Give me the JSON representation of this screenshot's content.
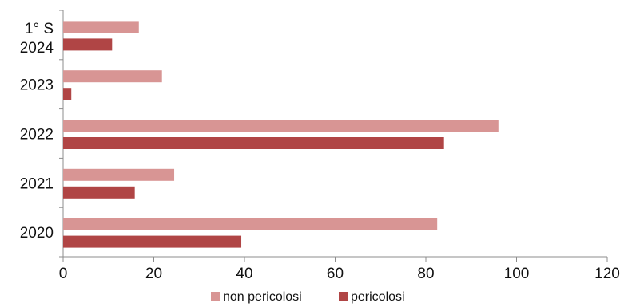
{
  "chart_data": {
    "type": "bar",
    "orientation": "horizontal",
    "title": "",
    "xlabel": "",
    "ylabel": "",
    "categories": [
      "2020",
      "2021",
      "2022",
      "2023",
      "2024"
    ],
    "category_labels": [
      [
        "2020"
      ],
      [
        "2021"
      ],
      [
        "2022"
      ],
      [
        "2023"
      ],
      [
        "1° S",
        "2024"
      ]
    ],
    "series": [
      {
        "name": "non pericolosi",
        "color": "#d89594",
        "values": [
          82.5,
          24.5,
          96,
          21.8,
          16.7
        ]
      },
      {
        "name": "pericolosi",
        "color": "#b04545",
        "values": [
          39.3,
          15.8,
          84,
          1.8,
          10.8
        ]
      }
    ],
    "xlim": [
      0,
      120
    ],
    "xticks": [
      0,
      20,
      40,
      60,
      80,
      100,
      120
    ],
    "grid": false,
    "legend_position": "bottom"
  }
}
